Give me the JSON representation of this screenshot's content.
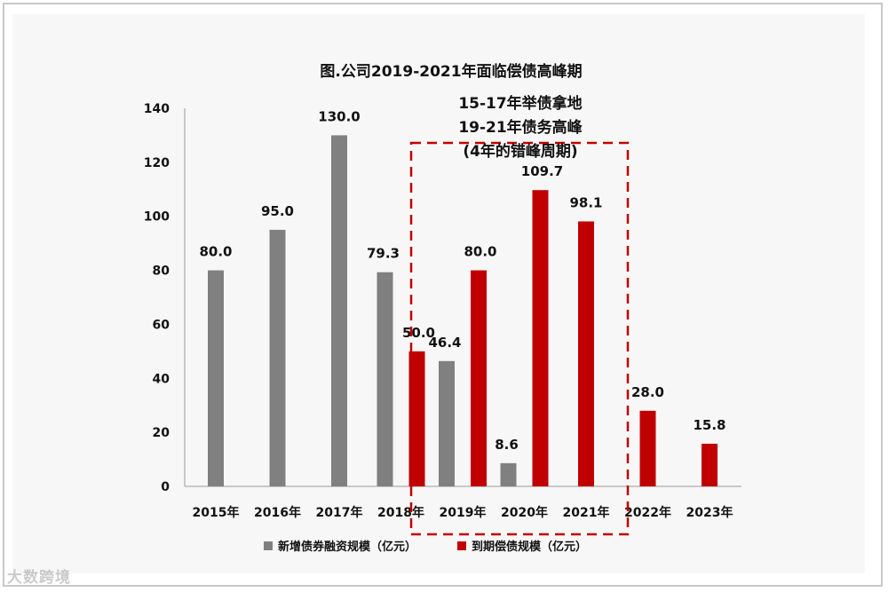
{
  "chart_data": {
    "type": "bar",
    "title": "图.公司2019-2021年面临偿债高峰期",
    "categories": [
      "2015年",
      "2016年",
      "2017年",
      "2018年",
      "2019年",
      "2020年",
      "2021年",
      "2022年",
      "2023年"
    ],
    "series": [
      {
        "name": "新增债券融资规模（亿元）",
        "color": "#808080",
        "values": [
          80.0,
          95.0,
          130.0,
          79.3,
          46.4,
          8.6,
          null,
          null,
          null
        ],
        "labels": [
          "80.0",
          "95.0",
          "130.0",
          "79.3",
          "46.4",
          "8.6",
          null,
          null,
          null
        ]
      },
      {
        "name": "到期偿债规模（亿元）",
        "color": "#c00000",
        "values": [
          null,
          null,
          null,
          50.0,
          80.0,
          109.7,
          98.1,
          28.0,
          15.8
        ],
        "labels": [
          null,
          null,
          null,
          "50.0",
          "80.0",
          "109.7",
          "98.1",
          "28.0",
          "15.8"
        ]
      }
    ],
    "yticks": [
      "0",
      "20",
      "40",
      "60",
      "80",
      "100",
      "120",
      "140"
    ],
    "ylim": [
      0,
      140
    ],
    "annotation": [
      "15-17年举债拿地",
      "19-21年债务高峰",
      "(4年的错峰周期)"
    ],
    "highlight_categories": [
      "2019年",
      "2020年",
      "2021年"
    ],
    "legend_position": "bottom"
  },
  "watermark": "大数跨境"
}
